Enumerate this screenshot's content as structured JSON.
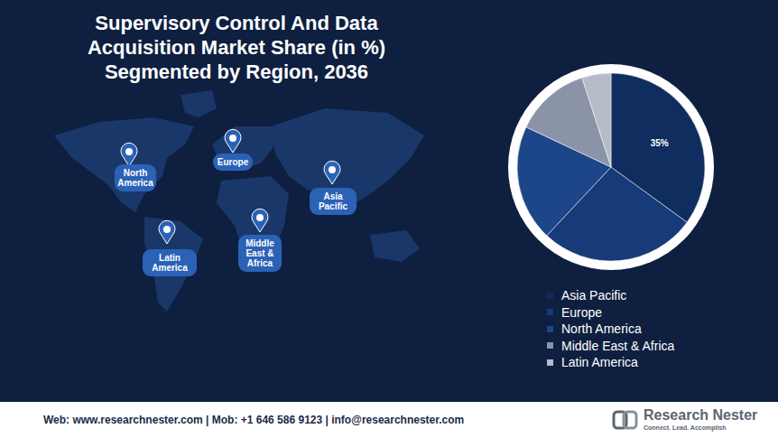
{
  "chart_data": {
    "type": "pie",
    "title": "Supervisory Control And Data Acquisition Market Share (in %) Segmented by Region, 2036",
    "categories": [
      "Asia Pacific",
      "Europe",
      "North America",
      "Middle East & Africa",
      "Latin America"
    ],
    "values": [
      35,
      27,
      20,
      13,
      5
    ],
    "value_labels": [
      "35%",
      null,
      null,
      null,
      null
    ],
    "colors": [
      "#0f2d5e",
      "#163b78",
      "#1c4689",
      "#8a93a8",
      "#b6bbc8"
    ],
    "data_labels": true,
    "legend": "bottom-right"
  },
  "map_labels": [
    "North America",
    "Europe",
    "Asia Pacific",
    "Latin America",
    "Middle East & Africa"
  ],
  "footer": {
    "contact": "Web: www.researchnester.com | Mob: +1 646 586 9123 | info@researchnester.com",
    "brand": "Research Nester",
    "tagline": "Connect. Lead. Accomplish"
  }
}
